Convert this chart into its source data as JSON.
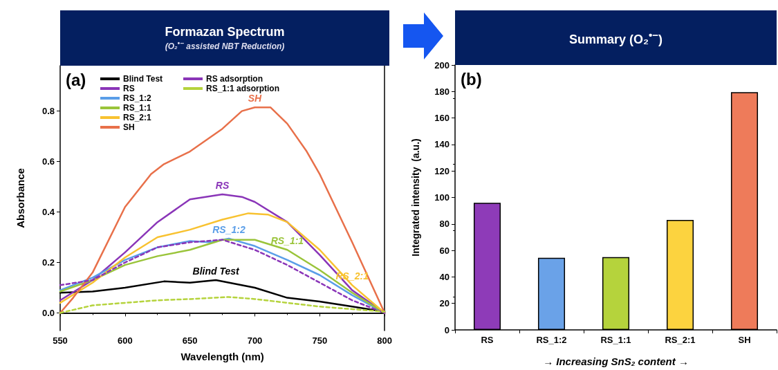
{
  "chart_data": [
    {
      "type": "line",
      "title": "Formazan Spectrum",
      "subtitle": "(O₂$^{•−}$ assisted NBT Reduction)",
      "xlabel": "Wavelength (nm)",
      "ylabel": "Absorbance",
      "xlim": [
        550,
        800
      ],
      "xticks": [
        550,
        600,
        650,
        700,
        750,
        800
      ],
      "ylim": [
        -0.07,
        0.98
      ],
      "yticks": [
        {
          "value": 0,
          "label": "0.0"
        },
        0.2,
        0.4,
        0.6,
        0.8
      ],
      "grid": false,
      "legend": "top left",
      "marker": "none",
      "series": [
        {
          "name": "Blind Test",
          "color": "#000000",
          "line_style": "solid",
          "x": [
            550,
            575,
            600,
            630,
            650,
            670,
            700,
            725,
            750,
            775,
            800
          ],
          "values": [
            0.08,
            0.085,
            0.1,
            0.125,
            0.12,
            0.13,
            0.1,
            0.06,
            0.045,
            0.025,
            0.005
          ]
        },
        {
          "name": "RS",
          "color": "#8a35b8",
          "line_style": "solid",
          "x": [
            550,
            575,
            600,
            625,
            650,
            675,
            690,
            700,
            725,
            750,
            775,
            800
          ],
          "values": [
            0.05,
            0.13,
            0.24,
            0.36,
            0.45,
            0.47,
            0.46,
            0.44,
            0.36,
            0.23,
            0.09,
            0.0
          ]
        },
        {
          "name": "RS_1:2",
          "color": "#5a9ee8",
          "line_style": "solid",
          "x": [
            550,
            575,
            600,
            625,
            650,
            665,
            680,
            700,
            725,
            750,
            775,
            800
          ],
          "values": [
            0.09,
            0.14,
            0.21,
            0.26,
            0.285,
            0.28,
            0.295,
            0.265,
            0.21,
            0.15,
            0.07,
            0.0
          ]
        },
        {
          "name": "RS_1:1",
          "color": "#9ac43a",
          "line_style": "solid",
          "x": [
            550,
            575,
            600,
            625,
            650,
            675,
            700,
            725,
            750,
            775,
            800
          ],
          "values": [
            0.085,
            0.13,
            0.19,
            0.225,
            0.25,
            0.29,
            0.29,
            0.25,
            0.17,
            0.08,
            0.0
          ]
        },
        {
          "name": "RS_2:1",
          "color": "#f8c230",
          "line_style": "solid",
          "x": [
            550,
            575,
            600,
            625,
            650,
            675,
            695,
            710,
            725,
            750,
            775,
            800
          ],
          "values": [
            0.04,
            0.12,
            0.22,
            0.3,
            0.33,
            0.37,
            0.395,
            0.39,
            0.36,
            0.25,
            0.11,
            0.0
          ]
        },
        {
          "name": "SH",
          "color": "#e8704a",
          "line_style": "solid",
          "x": [
            550,
            560,
            575,
            600,
            620,
            630,
            650,
            675,
            690,
            700,
            712,
            725,
            740,
            750,
            775,
            800
          ],
          "values": [
            0.0,
            0.06,
            0.16,
            0.42,
            0.55,
            0.59,
            0.64,
            0.73,
            0.8,
            0.815,
            0.815,
            0.75,
            0.64,
            0.55,
            0.28,
            0.0
          ]
        },
        {
          "name": "RS adsorption",
          "color": "#8a35b8",
          "line_style": "dashed",
          "x": [
            550,
            575,
            600,
            625,
            650,
            675,
            700,
            725,
            750,
            775,
            800
          ],
          "values": [
            0.11,
            0.13,
            0.2,
            0.26,
            0.28,
            0.29,
            0.25,
            0.19,
            0.12,
            0.05,
            0.0
          ]
        },
        {
          "name": "RS_1:1 adsorption",
          "color": "#b5d33c",
          "line_style": "dashed",
          "x": [
            550,
            575,
            600,
            625,
            650,
            680,
            700,
            725,
            750,
            775,
            800
          ],
          "values": [
            0.0,
            0.03,
            0.04,
            0.05,
            0.055,
            0.063,
            0.055,
            0.04,
            0.025,
            0.015,
            0.005
          ]
        }
      ],
      "annotations": [
        "(a)"
      ]
    },
    {
      "type": "bar",
      "title": "Summary (O₂$^{•−}$)",
      "xlabel": "→ Increasing SnS₂ content →",
      "ylabel": "Integrated intensity  (a.u.)",
      "categories": [
        "RS",
        "RS_1:2",
        "RS_1:1",
        "RS_2:1",
        "SH"
      ],
      "values": [
        96,
        54.5,
        55,
        83,
        179.5
      ],
      "colors": [
        "#8e3bb8",
        "#6aa2e8",
        "#b5d33c",
        "#fcd33f",
        "#ee7b5a"
      ],
      "ylim": [
        0,
        200
      ],
      "yticks": [
        0,
        20,
        40,
        60,
        80,
        100,
        120,
        140,
        160,
        180,
        200
      ],
      "grid": false,
      "legend": false,
      "annotations": [
        "(b)"
      ]
    }
  ]
}
